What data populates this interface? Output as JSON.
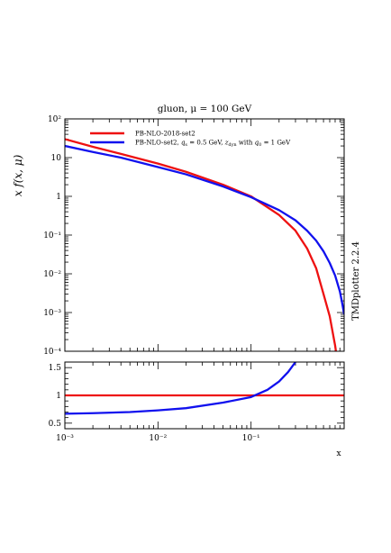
{
  "chart_data": [
    {
      "type": "line",
      "panel": "main",
      "title": "gluon, μ = 100 GeV",
      "ylabel": "x f(x, μ)",
      "xscale": "log",
      "yscale": "log",
      "xlim": [
        0.001,
        1
      ],
      "ylim": [
        0.0001,
        100
      ],
      "x_ticks": [
        "10⁻³",
        "10⁻²",
        "10⁻¹"
      ],
      "y_ticks": [
        {
          "value": 0.0001,
          "label": "10⁻⁴"
        },
        {
          "value": 0.001,
          "label": "10⁻³"
        },
        {
          "value": 0.01,
          "label": "10⁻²"
        },
        {
          "value": 0.1,
          "label": "10⁻¹"
        },
        {
          "value": 1,
          "label": "1"
        },
        {
          "value": 10,
          "label": "10"
        },
        {
          "value": 100,
          "label": "10²"
        }
      ],
      "legend_position": "top-left",
      "series": [
        {
          "name": "PB-NLO-2018-set2",
          "color": "#ee1111",
          "x": [
            0.001,
            0.002,
            0.004,
            0.01,
            0.02,
            0.05,
            0.1,
            0.2,
            0.3,
            0.4,
            0.5,
            0.6,
            0.7,
            0.8,
            0.85
          ],
          "y": [
            30,
            19,
            12.5,
            7,
            4.3,
            2,
            1.0,
            0.33,
            0.13,
            0.045,
            0.014,
            0.003,
            0.0008,
            0.00014,
            5e-05
          ]
        },
        {
          "name": "PB-NLO-set2, q_s = 0.5 GeV, z_dyn with q_0 = 1 GeV",
          "color": "#1111ee",
          "x": [
            0.001,
            0.002,
            0.004,
            0.01,
            0.02,
            0.05,
            0.1,
            0.2,
            0.3,
            0.4,
            0.5,
            0.6,
            0.7,
            0.8,
            0.9,
            0.95,
            1.0
          ],
          "y": [
            20,
            14,
            10,
            5.7,
            3.7,
            1.8,
            0.95,
            0.44,
            0.24,
            0.13,
            0.072,
            0.038,
            0.019,
            0.009,
            0.0035,
            0.0018,
            0.0009
          ]
        }
      ]
    },
    {
      "type": "line",
      "panel": "ratio",
      "xlabel": "x",
      "xscale": "log",
      "xlim": [
        0.001,
        1
      ],
      "ylim": [
        0.4,
        1.6
      ],
      "x_ticks": [
        "10⁻³",
        "10⁻²",
        "10⁻¹"
      ],
      "y_ticks": [
        {
          "value": 0.5,
          "label": "0.5"
        },
        {
          "value": 1,
          "label": "1"
        },
        {
          "value": 1.5,
          "label": "1.5"
        }
      ],
      "series": [
        {
          "name": "PB-NLO-2018-set2",
          "color": "#ee1111",
          "x": [
            0.001,
            1.0
          ],
          "y": [
            1.0,
            1.0
          ]
        },
        {
          "name": "PB-NLO-set2, q_s = 0.5 GeV, z_dyn with q_0 = 1 GeV",
          "color": "#1111ee",
          "x": [
            0.001,
            0.002,
            0.005,
            0.01,
            0.02,
            0.05,
            0.1,
            0.15,
            0.2,
            0.25,
            0.3
          ],
          "y": [
            0.67,
            0.68,
            0.7,
            0.73,
            0.77,
            0.87,
            0.97,
            1.1,
            1.25,
            1.42,
            1.6
          ]
        }
      ]
    }
  ],
  "side_label": "TMDplotter 2.2.4"
}
